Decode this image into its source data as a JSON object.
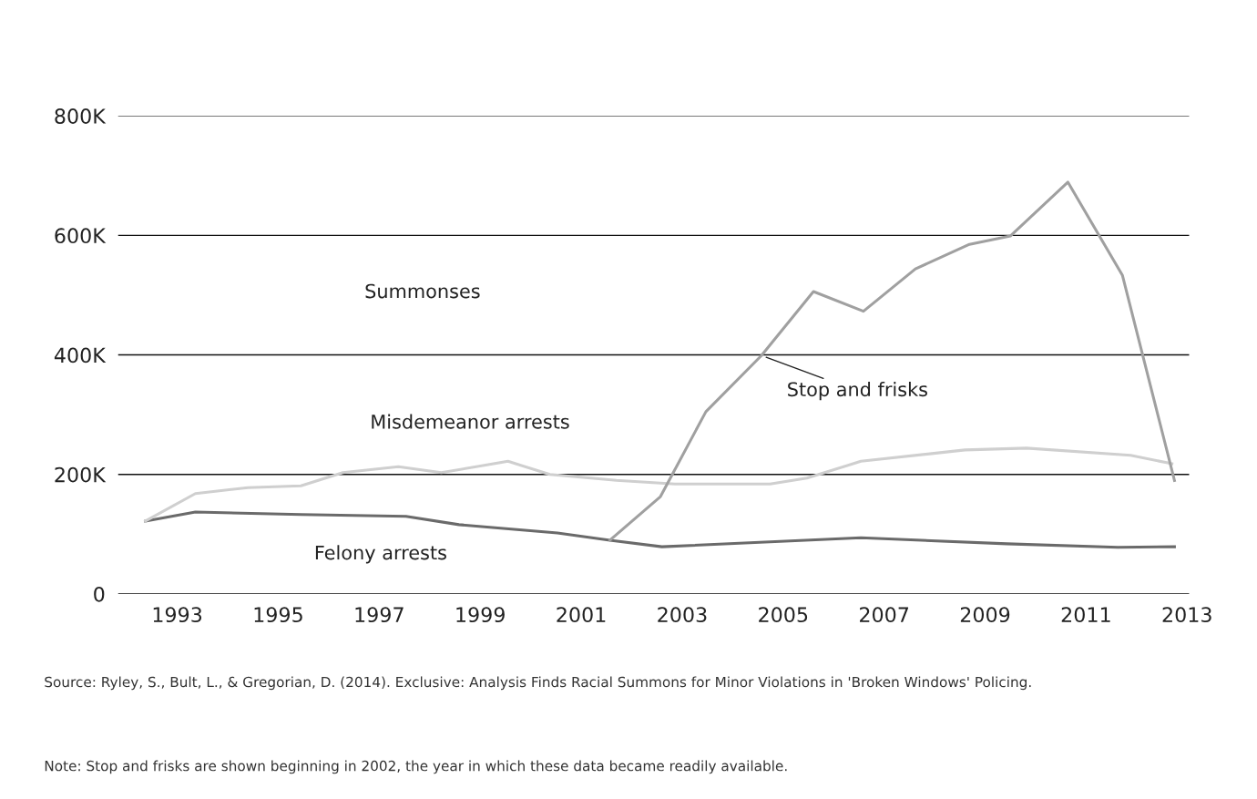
{
  "chart_data": {
    "type": "line",
    "series": [
      {
        "name": "Felony arrests",
        "color": "#6a6a6a",
        "x": [
          1992.37,
          1993.36,
          1995.45,
          1997.53,
          1998.58,
          2000.53,
          2001.57,
          2002.6,
          2006.54,
          2009.43,
          2011.63,
          2012.75
        ],
        "values": [
          122000,
          137000,
          133000,
          130000,
          116000,
          102000,
          90000,
          79000,
          94000,
          84000,
          78000,
          79000
        ]
      },
      {
        "name": "Misdemeanor arrests",
        "color": "#cfcfcf",
        "x": [
          1992.37,
          1993.36,
          1994.4,
          1995.45,
          1996.28,
          1997.38,
          1998.23,
          1999.55,
          2000.38,
          2001.7,
          2002.86,
          2004.74,
          2005.47,
          2006.54,
          2008.6,
          2009.82,
          2011.88,
          2012.7
        ],
        "values": [
          122000,
          168000,
          178000,
          181000,
          203000,
          213000,
          203000,
          222000,
          200000,
          190000,
          184000,
          184000,
          194000,
          222000,
          241000,
          244000,
          232000,
          218000
        ]
      },
      {
        "name": "Stop and frisks",
        "color": "#a0a0a0",
        "x": [
          2001.57,
          2002.57,
          2003.47,
          2004.57,
          2005.6,
          2006.59,
          2007.62,
          2008.69,
          2009.5,
          2010.64,
          2011.72,
          2012.75
        ],
        "values": [
          90000,
          163000,
          305000,
          399000,
          506000,
          473000,
          544000,
          585000,
          599000,
          689000,
          533000,
          190000
        ]
      }
    ],
    "xlim": [
      1991.83,
      2013.04
    ],
    "xticks": [
      1993,
      1995,
      1997,
      1999,
      2001,
      2003,
      2005,
      2007,
      2009,
      2011,
      2013
    ],
    "ylim": [
      0,
      800000
    ],
    "yticks": [
      {
        "value": 0,
        "label": "0"
      },
      {
        "value": 200000,
        "label": "200K"
      },
      {
        "value": 400000,
        "label": "400K"
      },
      {
        "value": 600000,
        "label": "600K"
      },
      {
        "value": 800000,
        "label": "800K"
      }
    ],
    "grid": "y",
    "legend": false,
    "marker": "none",
    "line_style": "solid",
    "annotations": [
      "Summonses",
      "Source: Ryley, S., Bult, L., & Gregorian, D. (2014). Exclusive: Analysis Finds Racial Summons for Minor Violations in 'Broken Windows' Policing.",
      "Note: Stop and frisks are shown beginning in 2002, the year in which these data became readily available."
    ]
  }
}
